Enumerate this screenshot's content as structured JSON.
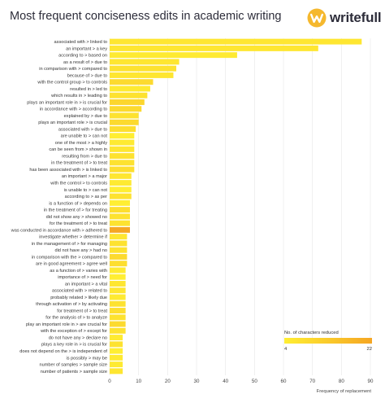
{
  "header": {
    "title": "Most frequent conciseness edits in academic writing",
    "brand_name": "writefull"
  },
  "colors": {
    "bar_low": "#ffee33",
    "bar_high": "#f5a623",
    "brand_icon": "#f5b82e",
    "text": "#2d2d3a"
  },
  "chart_data": {
    "type": "bar",
    "orientation": "horizontal",
    "title": "Most frequent conciseness edits in academic writing",
    "xlabel": "Frequency of replacement",
    "ylabel": "",
    "xlim": [
      0,
      90
    ],
    "x_ticks": [
      0,
      10,
      20,
      30,
      40,
      50,
      60,
      70,
      80,
      90
    ],
    "grid": true,
    "legend": {
      "title": "No. of characters reduced",
      "placement": "bottom-right",
      "min_label": "4",
      "max_label": "22",
      "min": 4,
      "max": 22
    },
    "categories": [
      "associated with > linked to",
      "an important > a key",
      "according to > based on",
      "as a result of > due to",
      "in comparison with > compared to",
      "because of > due to",
      "with the control group > to controls",
      "resulted in > led to",
      "which results in > leading to",
      "plays an important role in > is crucial for",
      "in accordance with > according to",
      "explained by > due to",
      "plays an important role > is crucial",
      "associated with > due to",
      "are unable to > can not",
      "one of the most > a highly",
      "can be seen from > shown in",
      "resulting from > due to",
      "in the treatment of > to treat",
      "has been associated with > is linked to",
      "an important > a major",
      "with the control > to controls",
      "is unable to > can not",
      "according to > as per",
      "is a function of > depends on",
      "in the treatment of > for treating",
      "did not show any > showed no",
      "for the treatment of > to treat",
      "was conducted in accordance with > adhered to",
      "investigate whether > determine if",
      "in the management of > for managing",
      "did not have any > had no",
      "in comparison with the > compared to",
      "are in good agreement > agree well",
      "as a function of > varies with",
      "importance of > need for",
      "an important > a vital",
      "associated with > related to",
      "probably related > likely due",
      "through activation of > by activating",
      "for treatment of > to treat",
      "for the analysis of > to analyze",
      "play an important role in > are crucial for",
      "with the exception of > except for",
      "do not have any > declare no",
      "plays a key role in > is crucial for",
      "does not depend on the > is independent of",
      "is possibly > may be",
      "number of samples > sample size",
      "number of patients > sample size"
    ],
    "values": [
      87,
      72,
      44,
      24,
      23,
      22,
      15,
      14,
      13,
      12,
      11,
      10,
      10,
      9,
      8.5,
      8.5,
      8.5,
      8.5,
      8.5,
      8.5,
      7.5,
      7.5,
      7.5,
      7.5,
      7,
      7,
      7,
      7,
      7,
      6,
      6,
      6,
      6,
      6,
      5.5,
      5.5,
      5.5,
      5.5,
      5.5,
      5.5,
      5.5,
      5.5,
      5.5,
      5.5,
      4.5,
      4.5,
      4.5,
      4.5,
      4.5,
      4.5
    ],
    "chars_reduced": [
      6,
      6,
      5,
      6,
      7,
      6,
      9,
      5,
      7,
      10,
      9,
      7,
      9,
      8,
      4,
      5,
      6,
      7,
      7,
      8,
      6,
      5,
      4,
      7,
      4,
      8,
      7,
      7,
      22,
      6,
      7,
      7,
      9,
      8,
      5,
      4,
      6,
      6,
      5,
      7,
      8,
      7,
      9,
      7,
      5,
      7,
      4,
      5,
      5,
      6
    ]
  }
}
